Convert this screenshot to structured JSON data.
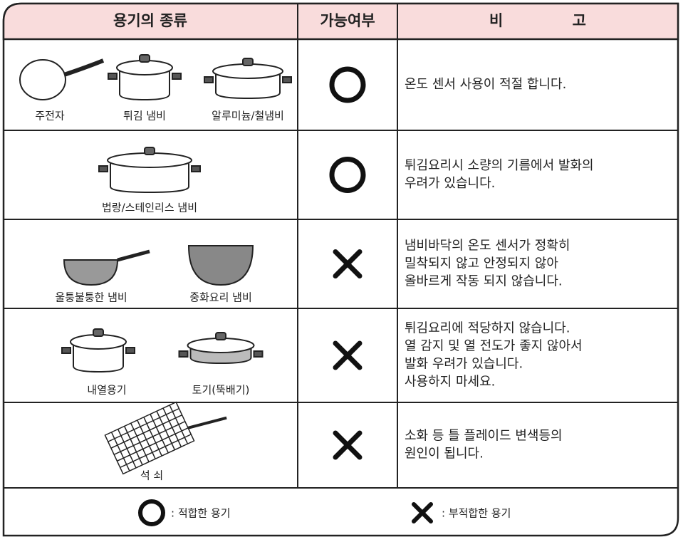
{
  "header": [
    "용기의 종류",
    "가능여부",
    "비 고"
  ],
  "rows": [
    {
      "items": [
        "주전자",
        "튀김 냄비",
        "알루미늄/철냄비"
      ],
      "remark": [
        "온도 센서 사용이 적절 합니다."
      ]
    },
    {
      "items": [
        "법랑/스테인리스 냄비"
      ],
      "remark": [
        "튀김요리시 소량의 기름에서 발화의",
        "우려가 있습니다."
      ]
    },
    {
      "items": [
        "울퉁불퉁한 냄비",
        "중화요리 냄비"
      ],
      "remark": [
        "냄비바닥의 온도 센서가 정확히",
        "밀착되지 않고 안정되지 않아",
        "올바르게 작동 되지 않습니다."
      ]
    },
    {
      "items": [
        "내열용기",
        "토기(뚝배기)"
      ],
      "remark": [
        "튀김요리에 적당하지 않습니다.",
        "열 감지 및 열 전도가 좋지 않아서",
        "발화 우려가 있습니다.",
        "사용하지 마세요."
      ]
    },
    {
      "items": [
        "석 쇠"
      ],
      "remark": [
        "소화 등 틀 플레이드 변색등의",
        "원인이 됩니다."
      ]
    }
  ],
  "legend": [
    ": 적합한 용기",
    ": 부적합한 용기"
  ]
}
